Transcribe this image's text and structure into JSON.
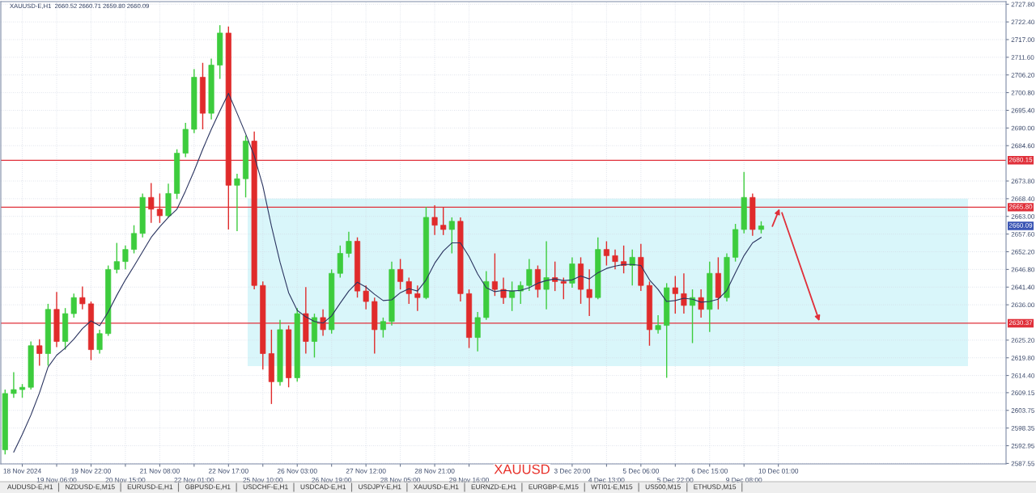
{
  "chart_data": {
    "type": "candlestick",
    "title": "XAUUSD",
    "subtitle": "XAUUSD-E,H1  2660.52 2660.71 2659.80 2660.09",
    "categories": [
      null,
      null,
      "18 Nov 2024",
      null,
      null,
      null,
      "19 Nov 06:00",
      null,
      null,
      null,
      "19 Nov 22:00",
      null,
      null,
      null,
      "20 Nov 15:00",
      null,
      null,
      null,
      "21 Nov 08:00",
      null,
      null,
      null,
      "22 Nov 01:00",
      null,
      null,
      null,
      "22 Nov 17:00",
      null,
      null,
      null,
      "25 Nov 10:00",
      null,
      null,
      null,
      "26 Nov 03:00",
      null,
      null,
      null,
      "26 Nov 19:00",
      null,
      null,
      null,
      "27 Nov 12:00",
      null,
      null,
      null,
      "28 Nov 05:00",
      null,
      null,
      null,
      "28 Nov 21:00",
      null,
      null,
      null,
      "29 Nov 16:00",
      null,
      null,
      null,
      null,
      null,
      null,
      null,
      null,
      null,
      null,
      null,
      "3 Dec 20:00",
      null,
      null,
      null,
      "4 Dec 13:00",
      null,
      null,
      null,
      "5 Dec 06:00",
      null,
      null,
      null,
      "5 Dec 22:00",
      null,
      null,
      null,
      "6 Dec 15:00",
      null,
      null,
      null,
      "9 Dec 08:00",
      null,
      null,
      null,
      "10 Dec 01:00",
      null,
      null,
      null,
      null,
      null,
      null,
      null,
      null,
      null,
      null,
      null,
      null,
      null,
      null,
      null,
      null,
      null,
      null,
      null,
      null,
      null,
      null,
      null,
      null,
      null,
      null
    ],
    "ohlc": [
      [
        2591.7,
        2610.1,
        2590.3,
        2608.9
      ],
      [
        2608.9,
        2615.4,
        2607.6,
        2610.1
      ],
      [
        2610.1,
        2611.8,
        2607.6,
        2610.8
      ],
      [
        2610.8,
        2624.8,
        2610.1,
        2623.5
      ],
      [
        2623.5,
        2625.5,
        2617.4,
        2621.1
      ],
      [
        2621.1,
        2636.3,
        2617.4,
        2634.6
      ],
      [
        2634.6,
        2639.9,
        2623.1,
        2624.8
      ],
      [
        2624.8,
        2635.0,
        2622.3,
        2633.3
      ],
      [
        2633.3,
        2639.4,
        2632.1,
        2638.2
      ],
      [
        2638.2,
        2641.6,
        2634.6,
        2636.3
      ],
      [
        2636.3,
        2637.0,
        2619.1,
        2622.3
      ],
      [
        2622.3,
        2628.4,
        2621.1,
        2627.2
      ],
      [
        2627.2,
        2648.0,
        2626.5,
        2646.8
      ],
      [
        2646.8,
        2654.9,
        2645.6,
        2649.2
      ],
      [
        2649.2,
        2654.1,
        2646.8,
        2652.9
      ],
      [
        2652.9,
        2660.3,
        2651.7,
        2657.8
      ],
      [
        2657.8,
        2670.0,
        2656.6,
        2668.8
      ],
      [
        2668.8,
        2673.2,
        2661.0,
        2665.2
      ],
      [
        2665.2,
        2670.0,
        2661.0,
        2663.2
      ],
      [
        2663.2,
        2673.0,
        2662.7,
        2670.0
      ],
      [
        2670.0,
        2683.5,
        2668.3,
        2682.3
      ],
      [
        2682.3,
        2691.6,
        2681.1,
        2689.6
      ],
      [
        2689.6,
        2708.0,
        2688.4,
        2705.5
      ],
      [
        2705.5,
        2709.9,
        2689.6,
        2694.5
      ],
      [
        2694.5,
        2711.2,
        2692.6,
        2709.2
      ],
      [
        2709.2,
        2721.4,
        2705.0,
        2719.0
      ],
      [
        2719.0,
        2721.0,
        2659.0,
        2672.5
      ],
      [
        2672.5,
        2676.0,
        2658.5,
        2674.5
      ],
      [
        2674.5,
        2687.7,
        2668.8,
        2686.0
      ],
      [
        2686.0,
        2688.9,
        2640.7,
        2641.9
      ],
      [
        2641.9,
        2643.1,
        2616.2,
        2621.1
      ],
      [
        2621.1,
        2628.4,
        2605.7,
        2612.5
      ],
      [
        2612.5,
        2631.4,
        2611.3,
        2628.4
      ],
      [
        2628.4,
        2629.7,
        2610.8,
        2613.7
      ],
      [
        2613.7,
        2635.0,
        2612.5,
        2633.3
      ],
      [
        2633.3,
        2641.4,
        2621.1,
        2624.8
      ],
      [
        2624.8,
        2633.3,
        2619.9,
        2632.1
      ],
      [
        2632.1,
        2634.6,
        2626.5,
        2628.4
      ],
      [
        2628.4,
        2646.8,
        2627.2,
        2645.6
      ],
      [
        2645.6,
        2654.1,
        2644.3,
        2651.7
      ],
      [
        2651.7,
        2658.3,
        2650.5,
        2655.4
      ],
      [
        2655.4,
        2656.6,
        2638.2,
        2640.2
      ],
      [
        2640.2,
        2641.9,
        2634.6,
        2637.0
      ],
      [
        2637.0,
        2638.2,
        2621.1,
        2628.4
      ],
      [
        2628.4,
        2632.1,
        2626.0,
        2630.9
      ],
      [
        2630.9,
        2649.2,
        2629.7,
        2646.8
      ],
      [
        2646.8,
        2650.0,
        2640.7,
        2643.1
      ],
      [
        2643.1,
        2644.3,
        2636.3,
        2639.4
      ],
      [
        2639.4,
        2641.9,
        2634.1,
        2638.2
      ],
      [
        2638.2,
        2665.9,
        2637.7,
        2662.7
      ],
      [
        2662.7,
        2666.4,
        2657.3,
        2660.3
      ],
      [
        2660.3,
        2665.9,
        2657.3,
        2659.0
      ],
      [
        2659.0,
        2662.7,
        2651.7,
        2661.5
      ],
      [
        2661.5,
        2662.7,
        2637.0,
        2639.4
      ],
      [
        2639.4,
        2640.7,
        2622.8,
        2626.0
      ],
      [
        2626.0,
        2633.8,
        2621.8,
        2632.1
      ],
      [
        2632.1,
        2646.3,
        2631.4,
        2643.1
      ],
      [
        2643.1,
        2651.7,
        2638.7,
        2640.7
      ],
      [
        2640.7,
        2644.3,
        2636.3,
        2638.2
      ],
      [
        2638.2,
        2643.1,
        2634.1,
        2640.2
      ],
      [
        2640.2,
        2643.1,
        2636.3,
        2641.9
      ],
      [
        2641.9,
        2650.0,
        2640.2,
        2646.8
      ],
      [
        2646.8,
        2648.0,
        2638.2,
        2640.7
      ],
      [
        2640.7,
        2655.4,
        2634.6,
        2644.3
      ],
      [
        2644.3,
        2649.2,
        2640.2,
        2643.1
      ],
      [
        2643.1,
        2644.3,
        2637.7,
        2642.6
      ],
      [
        2642.6,
        2650.5,
        2641.2,
        2648.5
      ],
      [
        2648.5,
        2650.5,
        2636.3,
        2640.7
      ],
      [
        2640.7,
        2646.8,
        2632.6,
        2638.2
      ],
      [
        2638.2,
        2656.6,
        2637.7,
        2652.9
      ],
      [
        2652.9,
        2655.4,
        2648.0,
        2651.0
      ],
      [
        2651.0,
        2652.9,
        2646.8,
        2649.2
      ],
      [
        2649.2,
        2654.1,
        2645.6,
        2648.0
      ],
      [
        2648.0,
        2652.9,
        2641.9,
        2650.5
      ],
      [
        2650.5,
        2654.6,
        2640.2,
        2641.9
      ],
      [
        2641.9,
        2643.1,
        2623.5,
        2628.4
      ],
      [
        2628.4,
        2632.8,
        2627.2,
        2629.7
      ],
      [
        2629.7,
        2642.6,
        2613.7,
        2641.2
      ],
      [
        2641.2,
        2644.8,
        2633.3,
        2639.4
      ],
      [
        2639.4,
        2645.6,
        2633.3,
        2635.8
      ],
      [
        2635.8,
        2640.7,
        2624.3,
        2638.2
      ],
      [
        2638.2,
        2640.7,
        2632.1,
        2634.6
      ],
      [
        2634.6,
        2649.2,
        2627.7,
        2645.6
      ],
      [
        2645.6,
        2650.5,
        2634.6,
        2638.2
      ],
      [
        2638.2,
        2651.7,
        2637.0,
        2650.5
      ],
      [
        2650.5,
        2660.7,
        2649.2,
        2659.0
      ],
      [
        2659.0,
        2676.6,
        2657.8,
        2668.8
      ],
      [
        2668.8,
        2670.0,
        2657.1,
        2659.0
      ],
      [
        2659.0,
        2661.5,
        2657.8,
        2660.09
      ],
      null,
      null,
      null,
      null,
      null,
      null,
      null,
      null,
      null,
      null,
      null,
      null,
      null,
      null,
      null,
      null,
      null,
      null,
      null,
      null,
      null,
      null,
      null,
      null,
      null,
      null,
      null,
      null
    ],
    "colors": [
      "#3dcc3d",
      "#3dcc3d",
      "#3dcc3d",
      "#3dcc3d",
      "#e02b2b",
      "#3dcc3d",
      "#e02b2b",
      "#3dcc3d",
      "#3dcc3d",
      "#e02b2b",
      "#e02b2b",
      "#3dcc3d",
      "#3dcc3d",
      "#3dcc3d",
      "#3dcc3d",
      "#3dcc3d",
      "#3dcc3d",
      "#e02b2b",
      "#e02b2b",
      "#3dcc3d",
      "#3dcc3d",
      "#3dcc3d",
      "#3dcc3d",
      "#e02b2b",
      "#3dcc3d",
      "#3dcc3d",
      "#e02b2b",
      "#3dcc3d",
      "#3dcc3d",
      "#e02b2b",
      "#e02b2b",
      "#e02b2b",
      "#3dcc3d",
      "#e02b2b",
      "#3dcc3d",
      "#e02b2b",
      "#3dcc3d",
      "#e02b2b",
      "#3dcc3d",
      "#3dcc3d",
      "#3dcc3d",
      "#e02b2b",
      "#e02b2b",
      "#e02b2b",
      "#3dcc3d",
      "#3dcc3d",
      "#e02b2b",
      "#e02b2b",
      "#e02b2b",
      "#3dcc3d",
      "#e02b2b",
      "#e02b2b",
      "#3dcc3d",
      "#e02b2b",
      "#e02b2b",
      "#3dcc3d",
      "#3dcc3d",
      "#e02b2b",
      "#e02b2b",
      "#3dcc3d",
      "#3dcc3d",
      "#3dcc3d",
      "#e02b2b",
      "#3dcc3d",
      "#e02b2b",
      "#e02b2b",
      "#3dcc3d",
      "#e02b2b",
      "#e02b2b",
      "#3dcc3d",
      "#e02b2b",
      "#e02b2b",
      "#e02b2b",
      "#3dcc3d",
      "#e02b2b",
      "#e02b2b",
      "#3dcc3d",
      "#3dcc3d",
      "#e02b2b",
      "#e02b2b",
      "#3dcc3d",
      "#e02b2b",
      "#3dcc3d",
      "#e02b2b",
      "#3dcc3d",
      "#3dcc3d",
      "#3dcc3d",
      "#e02b2b",
      "#3dcc3d",
      null,
      null,
      null,
      null,
      null,
      null,
      null,
      null,
      null,
      null,
      null,
      null,
      null,
      null,
      null,
      null,
      null,
      null,
      null,
      null,
      null,
      null,
      null,
      null,
      null,
      null,
      null,
      null
    ],
    "series": [
      {
        "type": "line",
        "color": "#2b3560",
        "values": [
          null,
          2591.0,
          2596.4,
          2602.3,
          2609.1,
          2617.0,
          2620.6,
          2622.8,
          2625.5,
          2628.7,
          2631.1,
          2629.6,
          2633.8,
          2638.9,
          2643.6,
          2647.8,
          2652.2,
          2656.6,
          2659.8,
          2662.7,
          2665.2,
          2670.8,
          2676.9,
          2683.5,
          2689.6,
          2695.2,
          2700.6,
          2694.5,
          2688.2,
          2681.5,
          2672.3,
          2660.0,
          2649.0,
          2639.7,
          2634.3,
          2632.3,
          2630.9,
          2630.4,
          2632.6,
          2636.5,
          2640.2,
          2642.9,
          2641.4,
          2639.2,
          2637.3,
          2637.5,
          2639.7,
          2640.9,
          2640.2,
          2643.6,
          2648.7,
          2652.4,
          2654.9,
          2654.9,
          2650.7,
          2645.4,
          2641.2,
          2640.0,
          2640.4,
          2640.2,
          2640.4,
          2641.2,
          2642.6,
          2643.4,
          2643.9,
          2643.4,
          2643.6,
          2644.8,
          2643.9,
          2645.8,
          2647.1,
          2647.8,
          2648.3,
          2648.3,
          2648.0,
          2643.6,
          2640.7,
          2637.0,
          2637.3,
          2638.0,
          2637.7,
          2636.8,
          2637.0,
          2637.7,
          2640.4,
          2645.8,
          2651.0,
          2654.9,
          2656.6,
          null,
          null,
          null,
          null,
          null,
          null,
          null,
          null,
          null,
          null,
          null,
          null,
          null,
          null,
          null,
          null,
          null,
          null,
          null,
          null,
          null,
          null,
          null,
          null,
          null,
          null,
          null,
          null
        ]
      }
    ],
    "ylim": [
      2587.4,
      2728.6
    ],
    "yticks": [
      {
        "value": 2727.8,
        "label": "2727.80"
      },
      {
        "value": 2722.4,
        "label": "2722.40"
      },
      {
        "value": 2717.0,
        "label": "2717.00"
      },
      {
        "value": 2711.6,
        "label": "2711.60"
      },
      {
        "value": 2706.2,
        "label": "2706.20"
      },
      {
        "value": 2700.8,
        "label": "2700.80"
      },
      {
        "value": 2695.4,
        "label": "2695.40"
      },
      {
        "value": 2690.0,
        "label": "2690.00"
      },
      {
        "value": 2684.6,
        "label": "2684.60"
      },
      {
        "value": 2673.8,
        "label": "2673.80"
      },
      {
        "value": 2668.4,
        "label": "2668.40"
      },
      {
        "value": 2663.0,
        "label": "2663.00"
      },
      {
        "value": 2657.6,
        "label": "2657.60"
      },
      {
        "value": 2652.2,
        "label": "2652.20"
      },
      {
        "value": 2646.8,
        "label": "2646.80"
      },
      {
        "value": 2641.4,
        "label": "2641.40"
      },
      {
        "value": 2636.0,
        "label": "2636.00"
      },
      {
        "value": 2625.2,
        "label": "2625.20"
      },
      {
        "value": 2619.8,
        "label": "2619.80"
      },
      {
        "value": 2614.4,
        "label": "2614.40"
      },
      {
        "value": 2609.15,
        "label": "2609.15"
      },
      {
        "value": 2603.75,
        "label": "2603.75"
      },
      {
        "value": 2598.35,
        "label": "2598.35"
      },
      {
        "value": 2592.95,
        "label": "2592.95"
      },
      {
        "value": 2587.55,
        "label": "2587.55"
      }
    ],
    "grid": true,
    "ref_lines": [
      {
        "axis": "y",
        "value": 2680.15,
        "label": "2680.15",
        "color": "#e0303a"
      },
      {
        "axis": "y",
        "value": 2665.8,
        "label": "2665.80",
        "color": "#e0303a"
      },
      {
        "axis": "y",
        "value": 2630.37,
        "label": "2630.37",
        "color": "#e0303a"
      }
    ],
    "bands": [
      {
        "axis": "y",
        "from": 2617.3,
        "to": 2668.4,
        "color": "#d9f6fa"
      }
    ],
    "annotations": [
      "2660.09",
      "AUDUSD-E,H1",
      "NZDUSD-E,M15",
      "EURUSD-E,H1",
      "GBPUSD-E,H1",
      "USDCHF-E,H1",
      "USDCAD-E,H1",
      "USDJPY-E,H1",
      "XAUUSD-E,H1",
      "EURNZD-E,H1",
      "EURGBP-E,M15",
      "WTI01-E,M15",
      "US500,M15",
      "ETHUSD,M15"
    ]
  }
}
